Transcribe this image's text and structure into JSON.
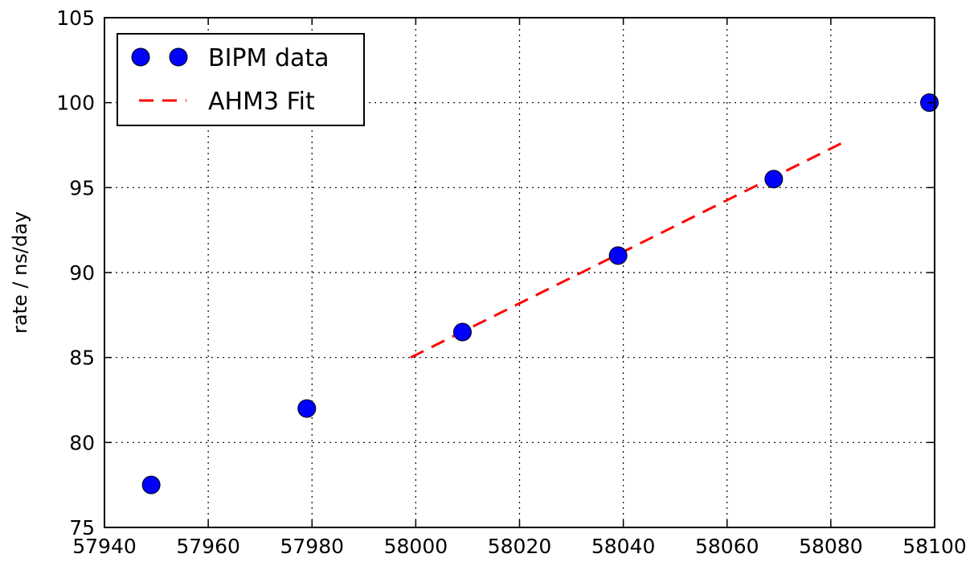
{
  "chart_data": {
    "type": "scatter",
    "title": "",
    "xlabel": "",
    "ylabel": "rate / ns/day",
    "xlim": [
      57940,
      58100
    ],
    "ylim": [
      75,
      105
    ],
    "xticks": [
      57940,
      57960,
      57980,
      58000,
      58020,
      58040,
      58060,
      58080,
      58100
    ],
    "yticks": [
      75,
      80,
      85,
      90,
      95,
      100,
      105
    ],
    "grid": true,
    "legend_position": "upper-left",
    "series": [
      {
        "name": "BIPM data",
        "kind": "scatter",
        "marker": "circle",
        "color": "#0000ff",
        "x": [
          57949,
          57979,
          58009,
          58039,
          58069,
          58099
        ],
        "y": [
          77.5,
          82.0,
          86.5,
          91.0,
          95.5,
          100.0
        ]
      },
      {
        "name": "AHM3 Fit",
        "kind": "line",
        "line_style": "dashed",
        "color": "#ff0000",
        "x": [
          57999,
          58082
        ],
        "y": [
          85.0,
          97.6
        ]
      }
    ]
  }
}
